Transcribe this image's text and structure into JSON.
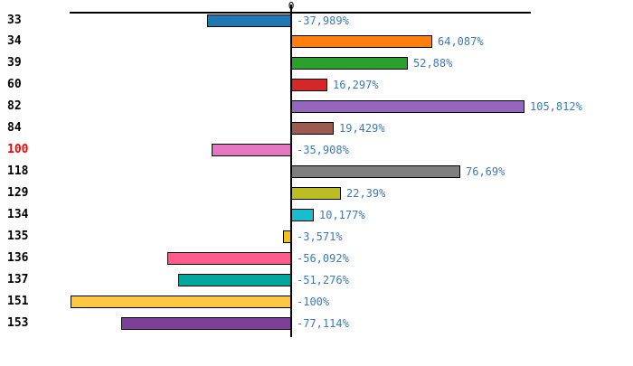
{
  "figure": {
    "background": "#ffffff"
  },
  "chart_data": {
    "type": "bar",
    "orientation": "horizontal",
    "title": "",
    "xlabel": "",
    "ylabel": "",
    "xlim": [
      -100,
      106
    ],
    "grid": false,
    "legend": false,
    "zero_tick_label": "0",
    "categories": [
      "33",
      "34",
      "39",
      "60",
      "82",
      "84",
      "100",
      "118",
      "129",
      "134",
      "135",
      "136",
      "137",
      "151",
      "153"
    ],
    "values": [
      -37.989,
      64.087,
      52.88,
      16.297,
      105.812,
      19.429,
      -35.908,
      76.69,
      22.39,
      10.177,
      -3.571,
      -56.092,
      -51.276,
      -100,
      -77.114
    ],
    "value_labels": [
      "-37,989%",
      "64,087%",
      "52,88%",
      "16,297%",
      "105,812%",
      "19,429%",
      "-35,908%",
      "76,69%",
      "22,39%",
      "10,177%",
      "-3,571%",
      "-56,092%",
      "-51,276%",
      "-100%",
      "-77,114%"
    ],
    "bar_colors": [
      "#1f77b4",
      "#ff7f0e",
      "#2ca02c",
      "#d62728",
      "#9467bd",
      "#9a5b50",
      "#e377c2",
      "#7f7f7f",
      "#bcbd22",
      "#17becf",
      "#eec11d",
      "#ff5c8d",
      "#00a79d",
      "#fec843",
      "#7d3f98"
    ],
    "highlighted_category": "100",
    "highlight_color": "#ff0000",
    "category_label_color": "#000000",
    "value_label_color": "#3d79b8",
    "axis_color": "#000000",
    "bar_border_color": "#000000"
  }
}
